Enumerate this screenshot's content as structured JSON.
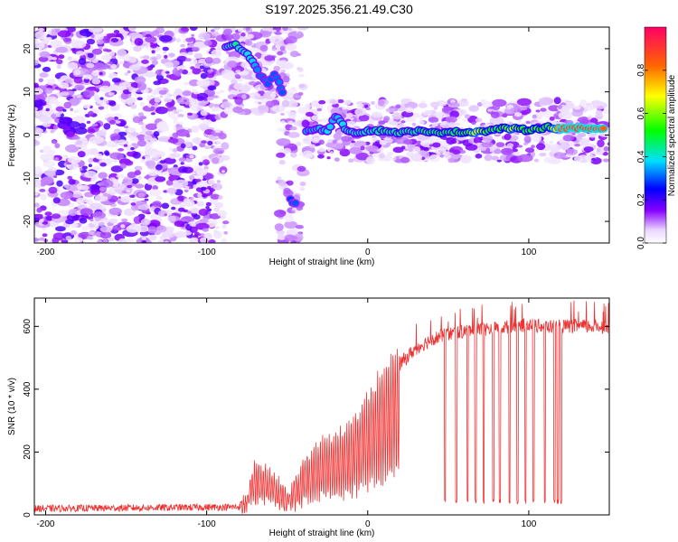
{
  "page": {
    "title": "S197.2025.356.21.49.C30"
  },
  "chart_data": [
    {
      "type": "heatmap",
      "title": "S197.2025.356.21.49.C30",
      "xlabel": "Height of straight line (km)",
      "ylabel": "Frequency (Hz)",
      "xlim": [
        -207,
        150
      ],
      "ylim": [
        -25,
        25
      ],
      "xticks": [
        -200,
        -100,
        0,
        100
      ],
      "xtick_labels": [
        "-200",
        "-100",
        "0",
        "100"
      ],
      "yticks": [
        -20,
        -10,
        0,
        10,
        20
      ],
      "ytick_labels": [
        "-20",
        "-10",
        "0",
        "10",
        "20"
      ],
      "colorbar": {
        "label": "Normalized spectral amplitude",
        "range": [
          0,
          1
        ],
        "ticks": [
          0.0,
          0.2,
          0.4,
          0.6,
          0.8
        ],
        "tick_labels": [
          "0.0",
          "0.2",
          "0.4",
          "0.6",
          "0.8"
        ],
        "colors": [
          "#ffffff",
          "#8800ff",
          "#0000ff",
          "#00e0ff",
          "#00ff00",
          "#ffff00",
          "#ff6600",
          "#ff0066"
        ]
      },
      "ridge": [
        {
          "x": -88,
          "y": 20.5,
          "v": 0.35
        },
        {
          "x": -82,
          "y": 20.8,
          "v": 0.45
        },
        {
          "x": -78,
          "y": 19.5,
          "v": 0.38
        },
        {
          "x": -73,
          "y": 18.0,
          "v": 0.4
        },
        {
          "x": -70,
          "y": 16.0,
          "v": 0.35
        },
        {
          "x": -67,
          "y": 14.0,
          "v": 0.3
        },
        {
          "x": -64,
          "y": 13.0,
          "v": 0.32
        },
        {
          "x": -62,
          "y": 12.0,
          "v": 0.3
        },
        {
          "x": -58,
          "y": 14.0,
          "v": 0.3
        },
        {
          "x": -55,
          "y": 12.0,
          "v": 0.32
        },
        {
          "x": -53,
          "y": 10.0,
          "v": 0.3
        },
        {
          "x": -48,
          "y": -15.0,
          "v": 0.28
        },
        {
          "x": -45,
          "y": -16.0,
          "v": 0.3
        },
        {
          "x": -38,
          "y": 1.0,
          "v": 0.35
        },
        {
          "x": -33,
          "y": 1.5,
          "v": 0.35
        },
        {
          "x": -25,
          "y": 1.0,
          "v": 0.38
        },
        {
          "x": -20,
          "y": 4.5,
          "v": 0.35
        },
        {
          "x": -14,
          "y": 1.5,
          "v": 0.4
        },
        {
          "x": -8,
          "y": 0.5,
          "v": 0.4
        },
        {
          "x": 0,
          "y": 1.0,
          "v": 0.42
        },
        {
          "x": 10,
          "y": 1.0,
          "v": 0.45
        },
        {
          "x": 20,
          "y": 0.5,
          "v": 0.45
        },
        {
          "x": 30,
          "y": 1.0,
          "v": 0.45
        },
        {
          "x": 40,
          "y": 0.5,
          "v": 0.48
        },
        {
          "x": 50,
          "y": 0.8,
          "v": 0.48
        },
        {
          "x": 60,
          "y": 0.6,
          "v": 0.5
        },
        {
          "x": 68,
          "y": 0.8,
          "v": 0.7
        },
        {
          "x": 75,
          "y": 1.0,
          "v": 0.5
        },
        {
          "x": 82,
          "y": 1.5,
          "v": 0.5
        },
        {
          "x": 90,
          "y": 1.5,
          "v": 0.65
        },
        {
          "x": 98,
          "y": 1.2,
          "v": 0.5
        },
        {
          "x": 105,
          "y": 1.5,
          "v": 0.55
        },
        {
          "x": 112,
          "y": 1.8,
          "v": 0.5
        },
        {
          "x": 120,
          "y": 1.5,
          "v": 0.85
        },
        {
          "x": 130,
          "y": 1.5,
          "v": 0.88
        },
        {
          "x": 140,
          "y": 1.5,
          "v": 0.88
        },
        {
          "x": 148,
          "y": 1.5,
          "v": 0.82
        }
      ]
    },
    {
      "type": "line",
      "xlabel": "Height of straight line (km)",
      "ylabel": "SNR (10 * v/v)",
      "xlim": [
        -207,
        150
      ],
      "ylim": [
        0,
        690
      ],
      "xticks": [
        -200,
        -100,
        0,
        100
      ],
      "xtick_labels": [
        "-200",
        "-100",
        "0",
        "100"
      ],
      "yticks": [
        0,
        200,
        400,
        600
      ],
      "ytick_labels": [
        "0",
        "200",
        "400",
        "600"
      ],
      "series": [
        {
          "name": "SNR",
          "color": "#ee3333",
          "envelope": {
            "x": [
              -207,
              -80,
              -75,
              -70,
              -60,
              -50,
              -40,
              -30,
              -20,
              -10,
              0,
              10,
              20,
              30,
              40,
              50,
              60,
              70,
              80,
              90,
              100,
              110,
              120,
              130,
              140,
              150
            ],
            "y": [
              20,
              25,
              60,
              150,
              120,
              60,
              150,
              200,
              220,
              260,
              330,
              420,
              480,
              530,
              560,
              575,
              585,
              590,
              595,
              600,
              605,
              600,
              600,
              600,
              600,
              600
            ]
          },
          "dropouts_x": [
            48,
            55,
            62,
            67,
            72,
            78,
            82,
            88,
            93,
            98,
            103,
            110,
            116,
            118,
            120
          ]
        }
      ]
    }
  ]
}
